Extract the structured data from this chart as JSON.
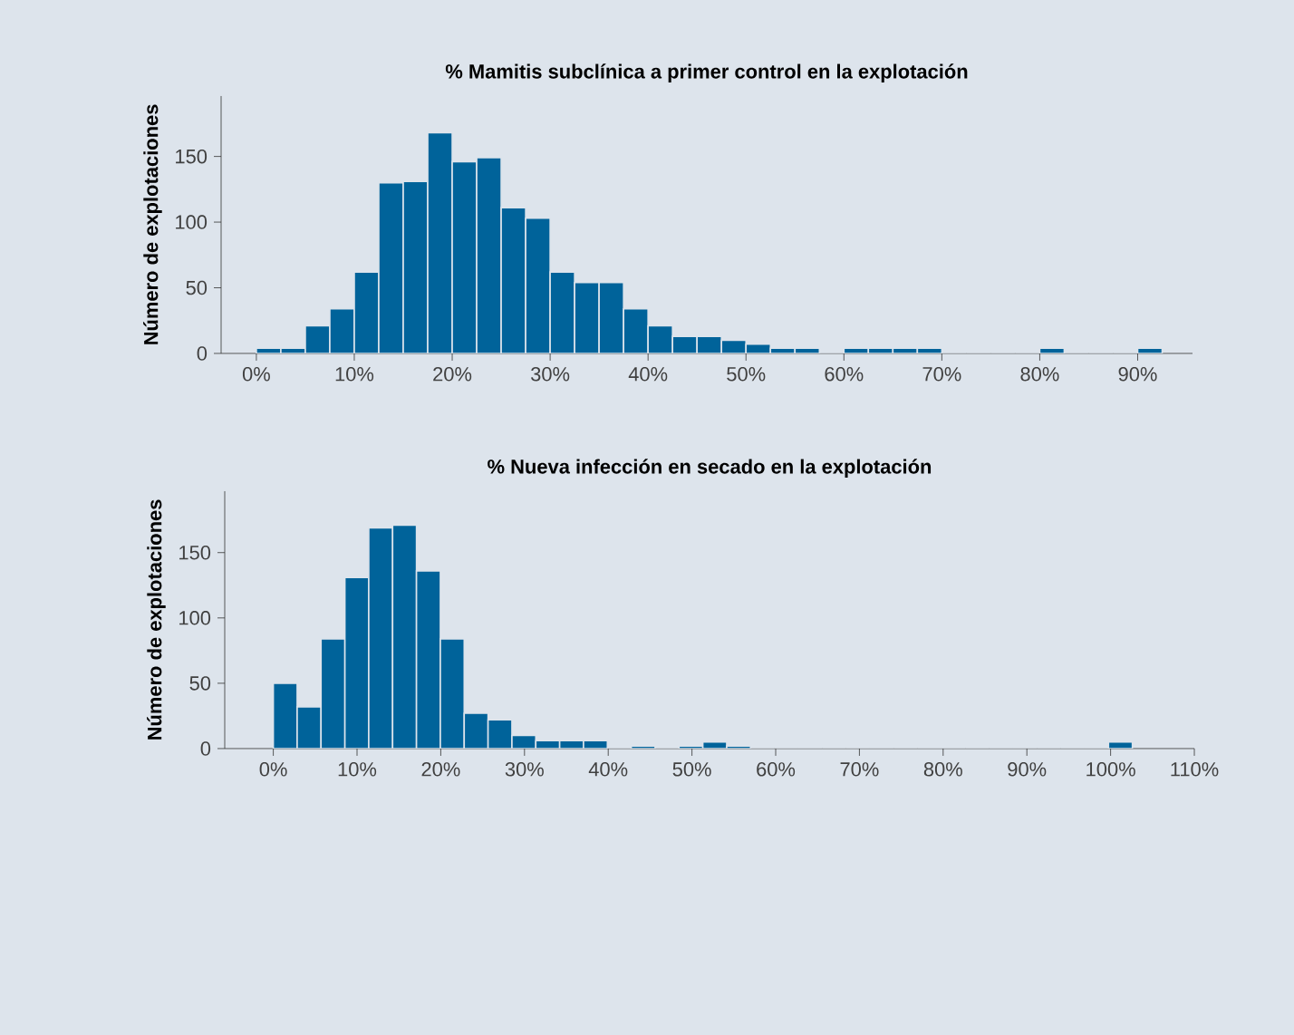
{
  "chart_data": [
    {
      "type": "histogram",
      "title": "% Mamitis subclínica a primer control en la explotación",
      "ylabel": "Número de explotaciones",
      "color": "#00639a",
      "bins": [
        0,
        2.5,
        5,
        7.5,
        10,
        12.5,
        15,
        17.5,
        20,
        22.5,
        25,
        27.5,
        30,
        32.5,
        35,
        37.5,
        40,
        42.5,
        45,
        47.5,
        50,
        52.5,
        55,
        57.5,
        60,
        62.5,
        65,
        67.5,
        70,
        72.5,
        75,
        77.5,
        80,
        82.5,
        85,
        87.5,
        90,
        92.5
      ],
      "values": [
        4,
        4,
        21,
        34,
        62,
        130,
        131,
        168,
        146,
        149,
        111,
        103,
        62,
        54,
        54,
        34,
        21,
        13,
        13,
        10,
        7,
        4,
        4,
        0,
        4,
        4,
        4,
        4,
        0,
        0,
        0,
        0,
        4,
        0,
        0,
        0,
        4
      ],
      "xlim": [
        -3.6,
        95.6
      ],
      "ylim": [
        0,
        196
      ],
      "xticks": [
        {
          "value": 0,
          "label": "0%"
        },
        {
          "value": 10,
          "label": "10%"
        },
        {
          "value": 20,
          "label": "20%"
        },
        {
          "value": 30,
          "label": "30%"
        },
        {
          "value": 40,
          "label": "40%"
        },
        {
          "value": 50,
          "label": "50%"
        },
        {
          "value": 60,
          "label": "60%"
        },
        {
          "value": 70,
          "label": "70%"
        },
        {
          "value": 80,
          "label": "80%"
        },
        {
          "value": 90,
          "label": "90%"
        }
      ],
      "yticks": [
        0,
        50,
        100,
        150
      ],
      "grid": false
    },
    {
      "type": "histogram",
      "title": "% Nueva infección en secado en la explotación",
      "ylabel": "Número de explotaciones",
      "color": "#00639a",
      "bins": [
        0,
        2.85,
        5.7,
        8.55,
        11.4,
        14.25,
        17.1,
        19.95,
        22.8,
        25.65,
        28.5,
        31.35,
        34.2,
        37.05,
        39.9,
        42.75,
        45.6,
        48.45,
        51.3,
        54.15,
        57,
        59.85,
        62.7,
        65.55,
        68.4,
        71.25,
        74.1,
        76.95,
        79.8,
        82.65,
        85.5,
        88.35,
        91.2,
        94.05,
        96.9,
        99.75,
        102.6
      ],
      "values": [
        50,
        32,
        84,
        131,
        169,
        171,
        136,
        84,
        27,
        22,
        10,
        6,
        6,
        6,
        0,
        2,
        0,
        2,
        5,
        2,
        0,
        0,
        0,
        0,
        0,
        0,
        0,
        0,
        0,
        0,
        0,
        0,
        0,
        0,
        0,
        5
      ],
      "xlim": [
        -5.8,
        110
      ],
      "ylim": [
        0,
        197
      ],
      "xticks": [
        {
          "value": 0,
          "label": "0%"
        },
        {
          "value": 10,
          "label": "10%"
        },
        {
          "value": 20,
          "label": "20%"
        },
        {
          "value": 30,
          "label": "30%"
        },
        {
          "value": 40,
          "label": "40%"
        },
        {
          "value": 50,
          "label": "50%"
        },
        {
          "value": 60,
          "label": "60%"
        },
        {
          "value": 70,
          "label": "70%"
        },
        {
          "value": 80,
          "label": "80%"
        },
        {
          "value": 90,
          "label": "90%"
        },
        {
          "value": 100,
          "label": "100%"
        },
        {
          "value": 110,
          "label": "110%"
        }
      ],
      "yticks": [
        0,
        50,
        100,
        150
      ],
      "grid": false
    }
  ]
}
